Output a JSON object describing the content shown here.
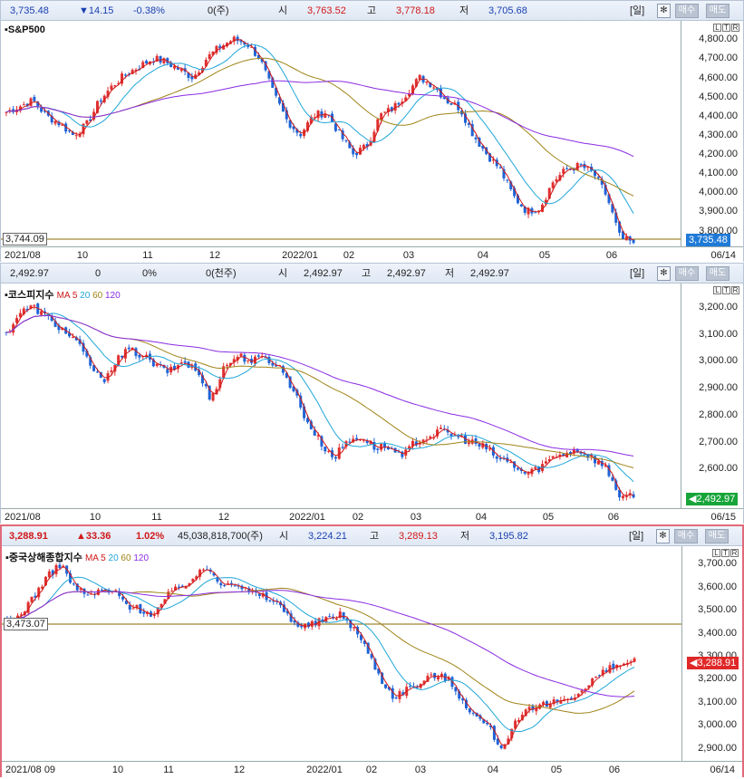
{
  "colors": {
    "up": "#e03030",
    "down": "#1e63d6",
    "ma5": "#d01818",
    "ma20": "#1ea6d8",
    "ma60": "#a08418",
    "ma120": "#8a2be2",
    "ref": "#8a6a00"
  },
  "panels": [
    {
      "id": "sp500",
      "header": {
        "price": "3,735.48",
        "change": "▼14.15",
        "pct": "-0.38%",
        "volume": "0(주)",
        "open_label": "시",
        "open": "3,763.52",
        "high_label": "고",
        "high": "3,778.18",
        "low_label": "저",
        "low": "3,705.68",
        "period": "[일]",
        "buy": "매수",
        "sell": "매도"
      },
      "title": "S&P500",
      "ma_labels": [],
      "ref_value": "3,744.09",
      "last_tag": "3,735.48",
      "x_labels": [
        "2021/08",
        "10",
        "11",
        "12",
        "2022/01",
        "02",
        "03",
        "04",
        "05",
        "06"
      ],
      "x_last": "06/14",
      "y_labels": [
        "4,800.00",
        "4,700.00",
        "4,600.00",
        "4,500.00",
        "4,400.00",
        "4,300.00",
        "4,200.00",
        "4,100.00",
        "4,000.00",
        "3,900.00",
        "3,800.00"
      ],
      "chart_data": {
        "type": "candlestick",
        "start": "2021/08",
        "end": "06/14",
        "close_points": [
          4420,
          4450,
          4480,
          4400,
          4360,
          4300,
          4350,
          4480,
          4560,
          4620,
          4660,
          4700,
          4680,
          4640,
          4600,
          4700,
          4760,
          4800,
          4780,
          4700,
          4520,
          4380,
          4300,
          4400,
          4420,
          4300,
          4200,
          4240,
          4400,
          4440,
          4520,
          4600,
          4560,
          4480,
          4440,
          4300,
          4200,
          4120,
          3980,
          3900,
          3920,
          4060,
          4120,
          4140,
          4100,
          3980,
          3760,
          3735.48
        ],
        "ylim": [
          3760,
          4830
        ]
      }
    },
    {
      "id": "kospi",
      "header": {
        "price": "2,492.97",
        "change": "0",
        "pct": "0%",
        "volume": "0(천주)",
        "open_label": "시",
        "open": "2,492.97",
        "high_label": "고",
        "high": "2,492.97",
        "low_label": "저",
        "low": "2,492.97",
        "period": "[일]",
        "buy": "매수",
        "sell": "매도"
      },
      "title": "코스피지수",
      "ma_labels": [
        "MA",
        "5",
        "20",
        "60",
        "120"
      ],
      "ref_value": "",
      "last_tag": "2,492.97",
      "x_labels": [
        "2021/08",
        "10",
        "11",
        "12",
        "2022/01",
        "02",
        "03",
        "04",
        "05",
        "06"
      ],
      "x_last": "06/15",
      "y_labels": [
        "3,200.00",
        "3,100.00",
        "3,000.00",
        "2,900.00",
        "2,800.00",
        "2,700.00",
        "2,600.00"
      ],
      "chart_data": {
        "type": "candlestick",
        "start": "2021/08",
        "end": "06/15",
        "close_points": [
          3100,
          3180,
          3200,
          3160,
          3120,
          3080,
          3000,
          2920,
          3000,
          3040,
          3020,
          2980,
          2960,
          3000,
          2960,
          2860,
          2980,
          3020,
          3000,
          3010,
          2980,
          2900,
          2780,
          2700,
          2640,
          2700,
          2720,
          2680,
          2680,
          2640,
          2700,
          2720,
          2740,
          2720,
          2700,
          2680,
          2640,
          2620,
          2580,
          2600,
          2640,
          2660,
          2670,
          2640,
          2600,
          2500,
          2492.97
        ],
        "ylim": [
          2480,
          3240
        ]
      }
    },
    {
      "id": "shanghai",
      "header": {
        "price": "3,288.91",
        "change": "▲33.36",
        "pct": "1.02%",
        "volume": "45,038,818,700(주)",
        "open_label": "시",
        "open": "3,224.21",
        "high_label": "고",
        "high": "3,289.13",
        "low_label": "저",
        "low": "3,195.82",
        "period": "[일]",
        "buy": "매수",
        "sell": "매도"
      },
      "title": "중국상해종합지수",
      "ma_labels": [
        "MA",
        "5",
        "20",
        "60",
        "120"
      ],
      "ref_value": "3,473.07",
      "last_tag": "3,288.91",
      "x_labels": [
        "2021/08 09",
        "10",
        "11",
        "12",
        "2022/01",
        "02",
        "03",
        "04",
        "05",
        "06"
      ],
      "x_last": "06/14",
      "y_labels": [
        "3,700.00",
        "3,600.00",
        "3,500.00",
        "3,400.00",
        "3,300.00",
        "3,200.00",
        "3,100.00",
        "3,000.00",
        "2,900.00"
      ],
      "chart_data": {
        "type": "candlestick",
        "start": "2021/08",
        "end": "06/14",
        "close_points": [
          3440,
          3480,
          3560,
          3640,
          3700,
          3600,
          3560,
          3580,
          3580,
          3520,
          3500,
          3480,
          3560,
          3600,
          3640,
          3680,
          3620,
          3620,
          3580,
          3560,
          3540,
          3480,
          3420,
          3440,
          3460,
          3480,
          3420,
          3320,
          3200,
          3120,
          3160,
          3180,
          3220,
          3200,
          3120,
          3040,
          3000,
          2900,
          3000,
          3060,
          3080,
          3100,
          3120,
          3140,
          3200,
          3240,
          3260,
          3288.91
        ],
        "ylim": [
          2880,
          3720
        ]
      }
    }
  ]
}
